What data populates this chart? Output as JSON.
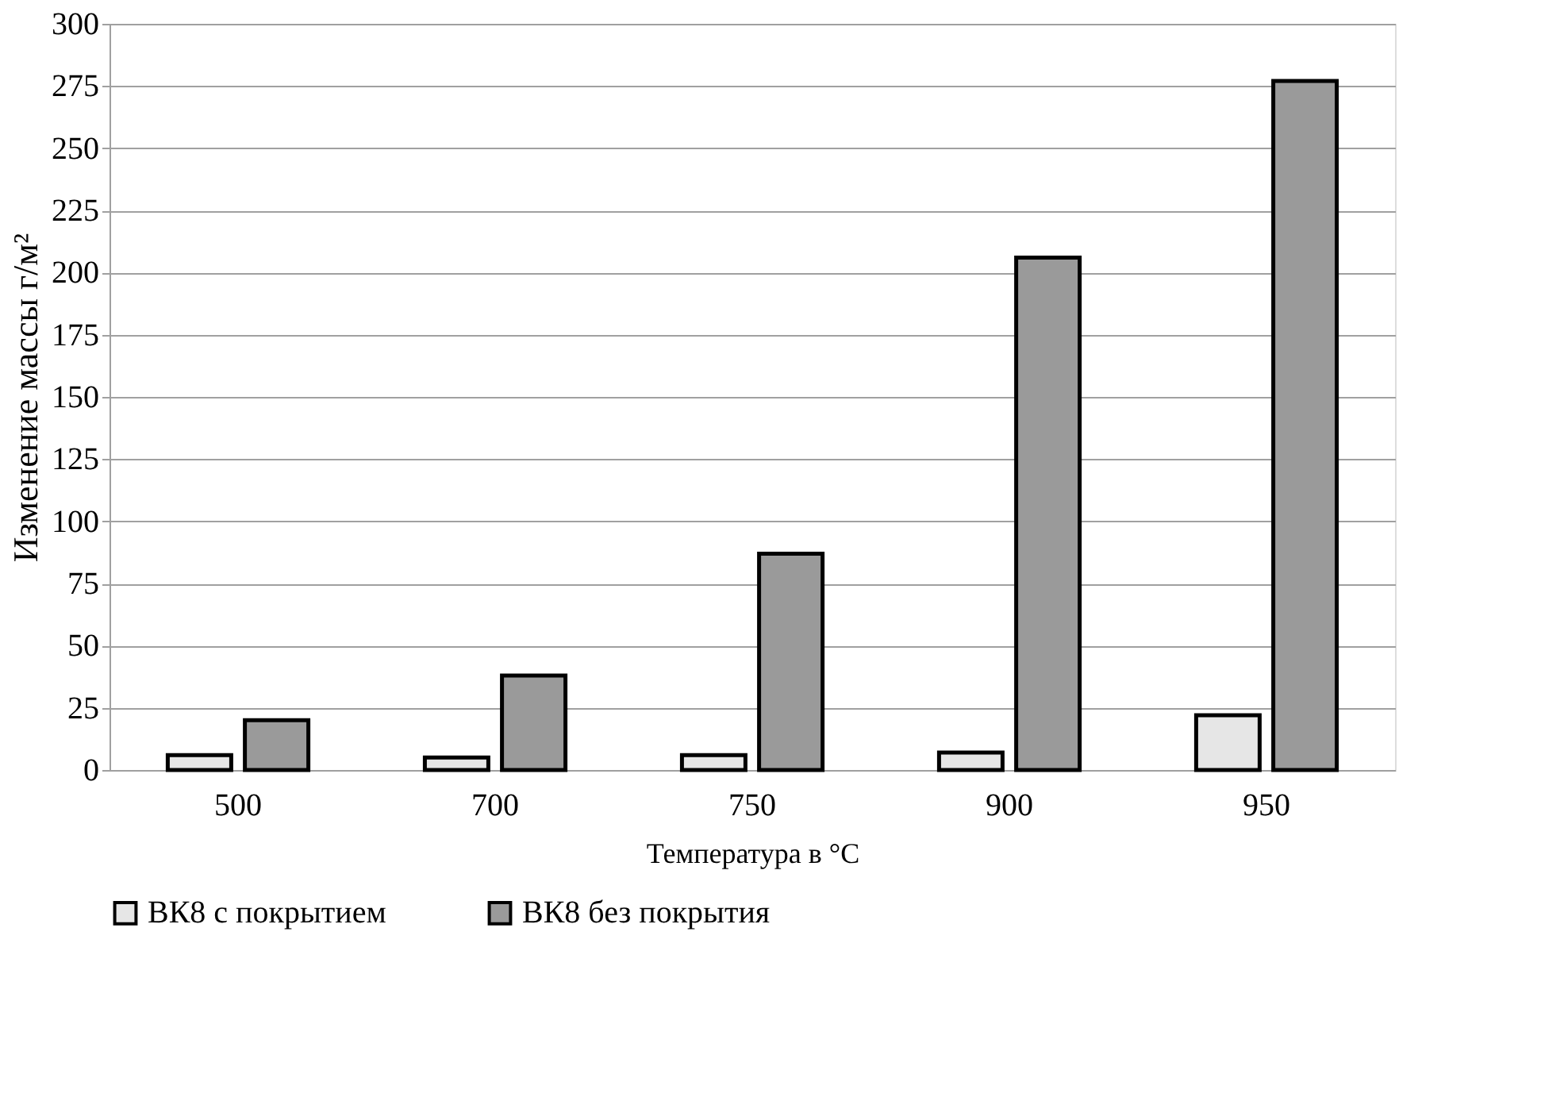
{
  "chart_data": {
    "type": "bar",
    "xlabel": "Температура в °C",
    "ylabel": "Изменение массы г/м²",
    "categories": [
      "500",
      "700",
      "750",
      "900",
      "950"
    ],
    "series": [
      {
        "name": "ВК8 с покрытием",
        "color": "#e6e6e6",
        "values": [
          6,
          5,
          6,
          7,
          22
        ]
      },
      {
        "name": "ВК8 без покрытия",
        "color": "#9a9a9a",
        "values": [
          20,
          38,
          87,
          206,
          277
        ]
      }
    ],
    "ylim": [
      0,
      300
    ],
    "yticks": [
      0,
      25,
      50,
      75,
      100,
      125,
      150,
      175,
      200,
      225,
      250,
      275,
      300
    ],
    "grid": "y",
    "legend": "bottom"
  }
}
